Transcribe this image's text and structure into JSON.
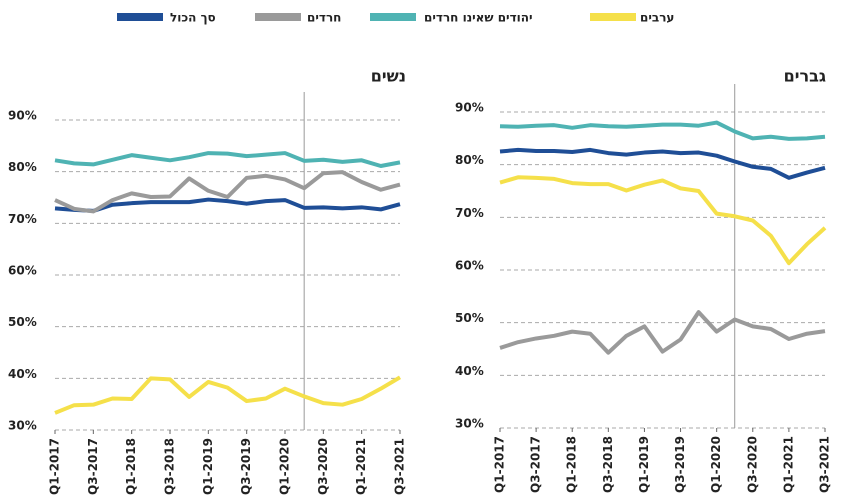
{
  "chart_data": [
    {
      "type": "line",
      "title": "גברים",
      "categories": [
        "Q1-2017",
        null,
        "Q3-2017",
        null,
        "Q1-2018",
        null,
        "Q3-2018",
        null,
        "Q1-2019",
        null,
        "Q3-2019",
        null,
        "Q1-2020",
        null,
        "Q3-2020",
        null,
        "Q1-2021",
        null,
        "Q3-2021"
      ],
      "ylim": [
        30,
        90
      ],
      "yticks": [
        {
          "value": 30,
          "label": "30%"
        },
        {
          "value": 40,
          "label": "40%"
        },
        {
          "value": 50,
          "label": "50%"
        },
        {
          "value": 60,
          "label": "60%"
        },
        {
          "value": 70,
          "label": "70%"
        },
        {
          "value": 80,
          "label": "80%"
        },
        {
          "value": 90,
          "label": "90%"
        }
      ],
      "grid": true,
      "series": [
        {
          "name": "סך הכול",
          "color": "#1f4e96",
          "values": [
            82.5,
            82.8,
            82.6,
            82.6,
            82.4,
            82.8,
            82.2,
            81.9,
            82.3,
            82.5,
            82.2,
            82.3,
            81.7,
            80.6,
            79.6,
            79.2,
            77.5,
            78.5,
            79.4
          ]
        },
        {
          "name": "חרדים",
          "color": "#9a9a9a",
          "values": [
            45.2,
            46.3,
            47.0,
            47.5,
            48.3,
            47.9,
            44.3,
            47.5,
            49.3,
            44.5,
            46.8,
            52.0,
            48.3,
            50.6,
            49.3,
            48.8,
            46.9,
            47.9,
            48.4
          ]
        },
        {
          "name": "יהודים שאינו חרדים",
          "color": "#4fb3b3",
          "values": [
            87.3,
            87.2,
            87.4,
            87.5,
            87.0,
            87.5,
            87.3,
            87.2,
            87.4,
            87.6,
            87.6,
            87.4,
            88.0,
            86.3,
            85.0,
            85.3,
            84.9,
            85.0,
            85.3
          ]
        },
        {
          "name": "ערבים",
          "color": "#f5e04a",
          "values": [
            76.6,
            77.6,
            77.5,
            77.3,
            76.5,
            76.3,
            76.3,
            75.1,
            76.2,
            77.0,
            75.5,
            75.0,
            70.7,
            70.2,
            69.4,
            66.5,
            61.3,
            64.9,
            68.0
          ]
        }
      ]
    },
    {
      "type": "line",
      "title": "נשים",
      "categories": [
        "Q1-2017",
        null,
        "Q3-2017",
        null,
        "Q1-2018",
        null,
        "Q3-2018",
        null,
        "Q1-2019",
        null,
        "Q3-2019",
        null,
        "Q1-2020",
        null,
        "Q3-2020",
        null,
        "Q1-2021",
        null,
        "Q3-2021"
      ],
      "ylim": [
        30,
        90
      ],
      "yticks": [
        {
          "value": 30,
          "label": "30%"
        },
        {
          "value": 40,
          "label": "40%"
        },
        {
          "value": 50,
          "label": "50%"
        },
        {
          "value": 60,
          "label": "60%"
        },
        {
          "value": 70,
          "label": "70%"
        },
        {
          "value": 80,
          "label": "80%"
        },
        {
          "value": 90,
          "label": "90%"
        }
      ],
      "grid": true,
      "series": [
        {
          "color": "#1f4e96",
          "values": [
            72.9,
            72.6,
            72.4,
            73.6,
            73.9,
            74.1,
            74.1,
            74.1,
            74.6,
            74.3,
            73.8,
            74.3,
            74.5,
            73.0,
            73.1,
            72.9,
            73.1,
            72.7,
            73.7
          ]
        },
        {
          "color": "#9a9a9a",
          "values": [
            74.5,
            72.8,
            72.3,
            74.5,
            75.8,
            75.1,
            75.2,
            78.7,
            76.3,
            75.1,
            78.8,
            79.2,
            78.5,
            76.8,
            79.7,
            79.9,
            78.0,
            76.5,
            77.5
          ]
        },
        {
          "color": "#4fb3b3",
          "values": [
            82.2,
            81.6,
            81.4,
            82.3,
            83.2,
            82.7,
            82.2,
            82.8,
            83.6,
            83.5,
            83.0,
            83.3,
            83.6,
            82.1,
            82.3,
            81.9,
            82.2,
            81.1,
            81.8
          ]
        },
        {
          "color": "#f5e04a",
          "values": [
            33.3,
            34.8,
            34.9,
            36.1,
            36.0,
            40.0,
            39.8,
            36.4,
            39.3,
            38.2,
            35.6,
            36.1,
            38.0,
            36.5,
            35.2,
            34.9,
            36.0,
            38.0,
            40.2
          ]
        }
      ]
    }
  ]
}
